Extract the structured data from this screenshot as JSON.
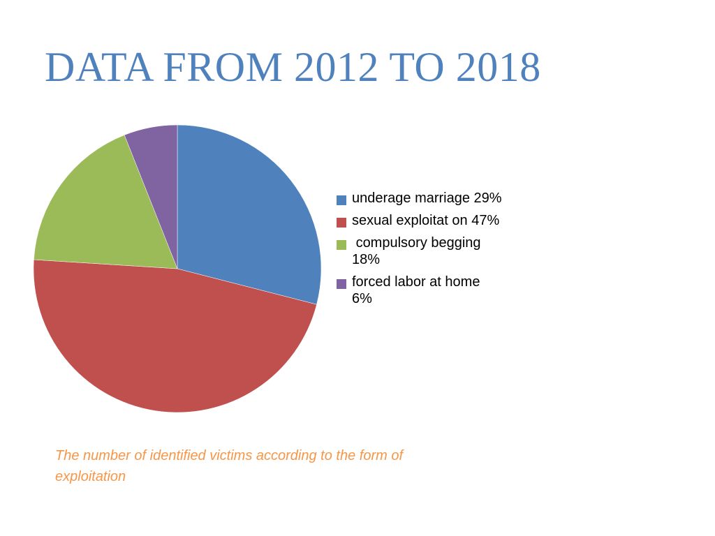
{
  "slide": {
    "title": "DATA FROM 2012 TO 2018",
    "caption": "The number of identified victims according to the form of exploitation"
  },
  "chart_data": {
    "type": "pie",
    "title": "",
    "start_angle_deg": 0,
    "direction": "clockwise",
    "legend_position": "right",
    "slices": [
      {
        "label": "underage marriage 29%",
        "value": 29,
        "color": "#4f81bd"
      },
      {
        "label": "sexual exploitat on 47%",
        "value": 47,
        "color": "#c0504d"
      },
      {
        "label": " compulsory begging 18%",
        "value": 18,
        "color": "#9bbb59"
      },
      {
        "label": "forced labor at home 6%",
        "value": 6,
        "color": "#8064a2"
      }
    ]
  }
}
